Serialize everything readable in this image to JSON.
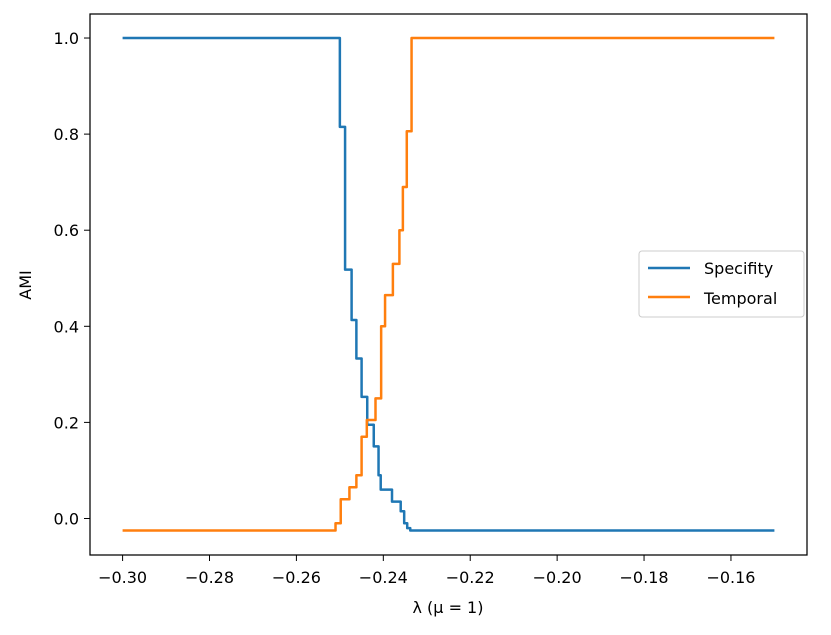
{
  "chart_data": {
    "type": "line",
    "xlabel": "λ (μ = 1)",
    "ylabel": "AMI",
    "xlim": [
      -0.3075,
      -0.1425
    ],
    "ylim": [
      -0.076,
      1.05
    ],
    "xticks": [
      {
        "value": -0.3,
        "label": "−0.30"
      },
      {
        "value": -0.28,
        "label": "−0.28"
      },
      {
        "value": -0.26,
        "label": "−0.26"
      },
      {
        "value": -0.24,
        "label": "−0.24"
      },
      {
        "value": -0.22,
        "label": "−0.22"
      },
      {
        "value": -0.2,
        "label": "−0.20"
      },
      {
        "value": -0.18,
        "label": "−0.18"
      },
      {
        "value": -0.16,
        "label": "−0.16"
      }
    ],
    "yticks": [
      {
        "value": 0.0,
        "label": "0.0"
      },
      {
        "value": 0.2,
        "label": "0.2"
      },
      {
        "value": 0.4,
        "label": "0.4"
      },
      {
        "value": 0.6,
        "label": "0.6"
      },
      {
        "value": 0.8,
        "label": "0.8"
      },
      {
        "value": 1.0,
        "label": "1.0"
      }
    ],
    "grid": false,
    "legend_position": "center-right",
    "series": [
      {
        "name": "Specifity",
        "color": "#1f77b4",
        "x": [
          -0.3,
          -0.2508,
          -0.25,
          -0.25,
          -0.2488,
          -0.2488,
          -0.2473,
          -0.2473,
          -0.2462,
          -0.2462,
          -0.245,
          -0.245,
          -0.2437,
          -0.2437,
          -0.2422,
          -0.2422,
          -0.2411,
          -0.2411,
          -0.2406,
          -0.2406,
          -0.24,
          -0.24,
          -0.238,
          -0.238,
          -0.236,
          -0.236,
          -0.2352,
          -0.2352,
          -0.2345,
          -0.2345,
          -0.2338,
          -0.2338,
          -0.15
        ],
        "y": [
          1.0,
          1.0,
          1.0,
          0.815,
          0.815,
          0.518,
          0.518,
          0.413,
          0.413,
          0.333,
          0.333,
          0.253,
          0.253,
          0.195,
          0.195,
          0.15,
          0.15,
          0.09,
          0.09,
          0.06,
          0.06,
          0.06,
          0.06,
          0.035,
          0.035,
          0.015,
          0.015,
          -0.01,
          -0.01,
          -0.02,
          -0.02,
          -0.025,
          -0.025
        ]
      },
      {
        "name": "Temporal",
        "color": "#ff7f0e",
        "x": [
          -0.3,
          -0.251,
          -0.251,
          -0.2498,
          -0.2498,
          -0.2478,
          -0.2478,
          -0.2462,
          -0.2462,
          -0.245,
          -0.245,
          -0.2438,
          -0.2438,
          -0.2418,
          -0.2418,
          -0.2405,
          -0.2405,
          -0.2396,
          -0.2396,
          -0.2378,
          -0.2378,
          -0.2363,
          -0.2363,
          -0.2355,
          -0.2355,
          -0.2346,
          -0.2346,
          -0.2335,
          -0.2335,
          -0.2325,
          -0.2325,
          -0.15
        ],
        "y": [
          -0.025,
          -0.025,
          -0.01,
          -0.01,
          0.04,
          0.04,
          0.065,
          0.065,
          0.09,
          0.09,
          0.17,
          0.17,
          0.205,
          0.205,
          0.25,
          0.25,
          0.4,
          0.4,
          0.465,
          0.465,
          0.53,
          0.53,
          0.6,
          0.6,
          0.69,
          0.69,
          0.806,
          0.806,
          1.0,
          1.0,
          1.0,
          1.0
        ]
      }
    ]
  }
}
